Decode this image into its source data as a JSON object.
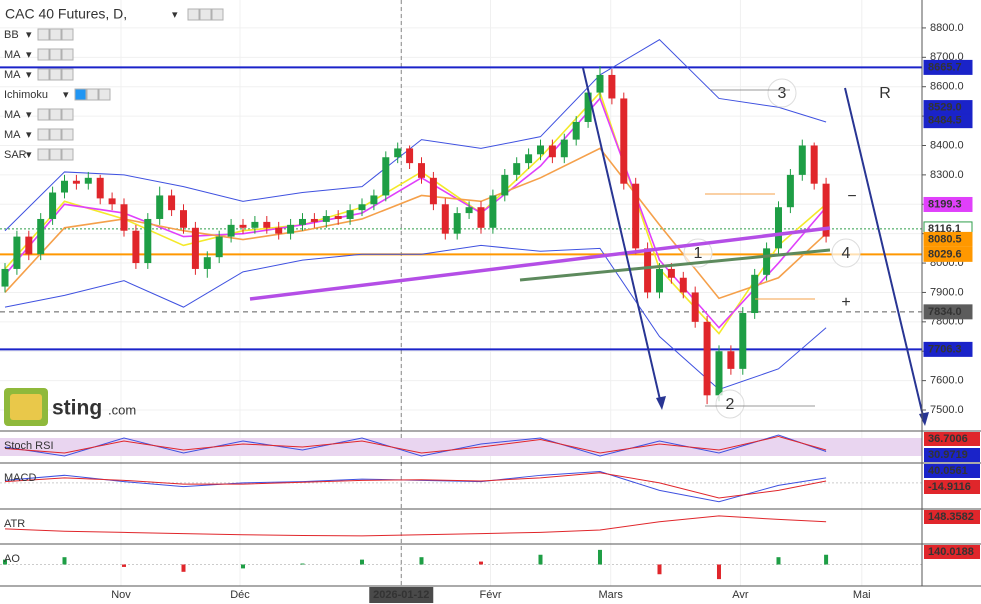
{
  "chart_data": {
    "type": "candlestick",
    "title": "CAC 40 Futures, D,",
    "indicators": [
      "BB",
      "MA",
      "MA",
      "Ichimoku",
      "MA",
      "MA",
      "SAR"
    ],
    "watermark": [
      "sting",
      ".com"
    ],
    "up_color": "#1e9e45",
    "down_color": "#e0262b",
    "xlim": [
      -0.42,
      77.06
    ],
    "ylim": [
      7432,
      8895
    ],
    "yticks": [
      {
        "value": 7500,
        "label": "7500.0"
      },
      {
        "value": 7600,
        "label": "7600.0"
      },
      {
        "value": 7700,
        "label": "7700.0"
      },
      {
        "value": 7800,
        "label": "7800.0"
      },
      {
        "value": 7900,
        "label": "7900.0"
      },
      {
        "value": 8000,
        "label": "8000.0"
      },
      {
        "value": 8100,
        "label": "8100.0"
      },
      {
        "value": 8200,
        "label": "8200.0"
      },
      {
        "value": 8300,
        "label": "8300.0"
      },
      {
        "value": 8400,
        "label": "8400.0"
      },
      {
        "value": 8500,
        "label": "8500.0"
      },
      {
        "value": 8600,
        "label": "8600.0"
      },
      {
        "value": 8700,
        "label": "8700.0"
      },
      {
        "value": 8800,
        "label": "8800.0"
      }
    ],
    "xticks": [
      {
        "value": 9.75,
        "label": "Nov"
      },
      {
        "value": 19.75,
        "label": "Déc"
      },
      {
        "value": 33.3,
        "label": "2026-01-12"
      },
      {
        "value": 40.8,
        "label": "Févr"
      },
      {
        "value": 50.9,
        "label": "Mars"
      },
      {
        "value": 61.8,
        "label": "Avr"
      },
      {
        "value": 72.0,
        "label": "Mai"
      }
    ],
    "crosshair_xtick": 2,
    "candles": [
      [
        7920,
        8000,
        7900,
        7980
      ],
      [
        7980,
        8110,
        7960,
        8090
      ],
      [
        8090,
        8110,
        8010,
        8030
      ],
      [
        8030,
        8170,
        8010,
        8150
      ],
      [
        8150,
        8260,
        8130,
        8240
      ],
      [
        8240,
        8300,
        8220,
        8280
      ],
      [
        8280,
        8300,
        8250,
        8270
      ],
      [
        8270,
        8310,
        8250,
        8290
      ],
      [
        8290,
        8300,
        8200,
        8220
      ],
      [
        8220,
        8240,
        8180,
        8200
      ],
      [
        8200,
        8220,
        8090,
        8110
      ],
      [
        8110,
        8130,
        7980,
        8000
      ],
      [
        8000,
        8170,
        7980,
        8150
      ],
      [
        8150,
        8260,
        8130,
        8230
      ],
      [
        8230,
        8250,
        8160,
        8180
      ],
      [
        8180,
        8200,
        8100,
        8120
      ],
      [
        8120,
        8140,
        7960,
        7980
      ],
      [
        7980,
        8040,
        7950,
        8020
      ],
      [
        8020,
        8110,
        8000,
        8090
      ],
      [
        8090,
        8150,
        8070,
        8130
      ],
      [
        8130,
        8150,
        8100,
        8120
      ],
      [
        8120,
        8160,
        8100,
        8140
      ],
      [
        8140,
        8160,
        8100,
        8120
      ],
      [
        8120,
        8140,
        8080,
        8100
      ],
      [
        8100,
        8150,
        8080,
        8130
      ],
      [
        8130,
        8170,
        8110,
        8150
      ],
      [
        8150,
        8170,
        8120,
        8140
      ],
      [
        8140,
        8180,
        8120,
        8160
      ],
      [
        8160,
        8180,
        8130,
        8150
      ],
      [
        8150,
        8200,
        8130,
        8180
      ],
      [
        8180,
        8220,
        8160,
        8200
      ],
      [
        8200,
        8250,
        8180,
        8230
      ],
      [
        8230,
        8380,
        8210,
        8360
      ],
      [
        8360,
        8410,
        8340,
        8390
      ],
      [
        8390,
        8400,
        8320,
        8340
      ],
      [
        8340,
        8360,
        8270,
        8290
      ],
      [
        8290,
        8310,
        8180,
        8200
      ],
      [
        8200,
        8220,
        8080,
        8100
      ],
      [
        8100,
        8190,
        8080,
        8170
      ],
      [
        8170,
        8210,
        8150,
        8190
      ],
      [
        8190,
        8210,
        8100,
        8120
      ],
      [
        8120,
        8250,
        8100,
        8230
      ],
      [
        8230,
        8320,
        8210,
        8300
      ],
      [
        8300,
        8360,
        8280,
        8340
      ],
      [
        8340,
        8390,
        8320,
        8370
      ],
      [
        8370,
        8420,
        8350,
        8400
      ],
      [
        8400,
        8420,
        8340,
        8360
      ],
      [
        8360,
        8440,
        8340,
        8420
      ],
      [
        8420,
        8500,
        8400,
        8480
      ],
      [
        8480,
        8600,
        8460,
        8580
      ],
      [
        8580,
        8670,
        8560,
        8640
      ],
      [
        8640,
        8660,
        8540,
        8560
      ],
      [
        8560,
        8580,
        8250,
        8270
      ],
      [
        8270,
        8290,
        8030,
        8050
      ],
      [
        8050,
        8070,
        7880,
        7900
      ],
      [
        7900,
        8000,
        7880,
        7980
      ],
      [
        7980,
        8000,
        7930,
        7950
      ],
      [
        7950,
        7970,
        7880,
        7900
      ],
      [
        7900,
        7920,
        7780,
        7800
      ],
      [
        7800,
        7820,
        7520,
        7550
      ],
      [
        7550,
        7720,
        7530,
        7700
      ],
      [
        7700,
        7720,
        7620,
        7640
      ],
      [
        7640,
        7850,
        7620,
        7830
      ],
      [
        7830,
        7980,
        7810,
        7960
      ],
      [
        7960,
        8070,
        7940,
        8050
      ],
      [
        8050,
        8210,
        8030,
        8190
      ],
      [
        8190,
        8320,
        8170,
        8300
      ],
      [
        8300,
        8420,
        8280,
        8400
      ],
      [
        8400,
        8410,
        8250,
        8270
      ],
      [
        8270,
        8290,
        8070,
        8090
      ]
    ],
    "line_x": [
      0,
      5,
      10,
      15,
      20,
      25,
      30,
      35,
      40,
      45,
      50,
      55,
      60,
      65,
      69
    ],
    "lines": [
      {
        "color": "#3f51e0",
        "values": [
          8110,
          8310,
          8300,
          8260,
          8210,
          8240,
          8260,
          8420,
          8390,
          8430,
          8640,
          8760,
          8560,
          8530,
          8480
        ]
      },
      {
        "color": "#3f51e0",
        "values": [
          7850,
          7890,
          7940,
          7850,
          7970,
          8010,
          8030,
          8030,
          8060,
          8040,
          8050,
          7750,
          7570,
          7640,
          7780
        ]
      },
      {
        "color": "#f4e92a",
        "values": [
          7980,
          8210,
          8150,
          8060,
          8110,
          8130,
          8190,
          8310,
          8170,
          8360,
          8580,
          7980,
          7760,
          8060,
          8200
        ]
      },
      {
        "color": "#e040fb",
        "values": [
          7960,
          8200,
          8170,
          8090,
          8100,
          8130,
          8170,
          8290,
          8170,
          8330,
          8560,
          8010,
          7780,
          8000,
          8190
        ]
      },
      {
        "color": "#f5a04a",
        "values": [
          7900,
          8120,
          8150,
          8110,
          8080,
          8110,
          8150,
          8230,
          8210,
          8290,
          8390,
          8130,
          7880,
          7950,
          8100
        ]
      }
    ],
    "price_labels": [
      {
        "value": 8665.7,
        "color": "#1a23c9",
        "line": "solid"
      },
      {
        "value": 8529.0,
        "label": "8529.0",
        "color": "#1a23c9"
      },
      {
        "value": 8484.5,
        "color": "#1a23c9"
      },
      {
        "value": 8199.3,
        "color": "#e040fb"
      },
      {
        "value": 8116.1,
        "color": "#ffffff",
        "line": "dotted"
      },
      {
        "value": 8080.5,
        "color": "#ff9800"
      },
      {
        "value": 8029.6,
        "color": "#ff9800",
        "line": "solid"
      },
      {
        "value": 7834.0,
        "label": "7834.0",
        "color": "#5c5c5c",
        "line": "dashed"
      },
      {
        "value": 7706.3,
        "color": "#1a23c9",
        "line": "solid"
      }
    ],
    "annotations": [
      "1",
      "2",
      "3",
      "4",
      "R",
      "−",
      "+"
    ],
    "panes": [
      {
        "name": "Stoch RSI",
        "ylim": [
          0,
          100
        ],
        "series": [
          {
            "color": "#3f51e0",
            "values": [
              50,
              20,
              80,
              30,
              70,
              40,
              80,
              20,
              60,
              80,
              20,
              70,
              30,
              90,
              35
            ]
          },
          {
            "color": "#e0262b",
            "values": [
              45,
              30,
              70,
              40,
              60,
              50,
              70,
              30,
              50,
              75,
              30,
              60,
              40,
              85,
              40
            ]
          }
        ],
        "labels": [
          {
            "value": 36.7006,
            "color": "#e0262b"
          },
          {
            "value": 30.9719,
            "color": "#1a23c9"
          }
        ]
      },
      {
        "name": "MACD",
        "ylim": [
          -200,
          150
        ],
        "series": [
          {
            "color": "#3f51e0",
            "values": [
              20,
              60,
              10,
              -30,
              0,
              10,
              30,
              20,
              10,
              60,
              90,
              -60,
              -150,
              -20,
              40
            ]
          },
          {
            "color": "#e0262b",
            "values": [
              10,
              40,
              20,
              -10,
              -10,
              5,
              20,
              25,
              15,
              40,
              80,
              0,
              -120,
              -60,
              15
            ]
          }
        ],
        "labels": [
          {
            "value": 40.0561,
            "color": "#1a23c9"
          },
          {
            "value": -14.9116,
            "color": "#e0262b"
          }
        ]
      },
      {
        "name": "ATR",
        "ylim": [
          60,
          200
        ],
        "series": [
          {
            "color": "#e0262b",
            "values": [
              120,
              110,
              105,
              100,
              95,
              92,
              90,
              95,
              100,
              105,
              115,
              150,
              175,
              160,
              150
            ]
          }
        ],
        "labels": [
          {
            "value": 148.3582,
            "color": "#e0262b"
          }
        ]
      },
      {
        "name": "AO",
        "ylim": [
          -400,
          400
        ],
        "bars": [
          100,
          150,
          -50,
          -150,
          -80,
          20,
          100,
          150,
          60,
          200,
          300,
          -200,
          -300,
          150,
          200
        ],
        "labels": [
          {
            "value": 140.0188,
            "color": "#e0262b"
          }
        ]
      }
    ]
  }
}
